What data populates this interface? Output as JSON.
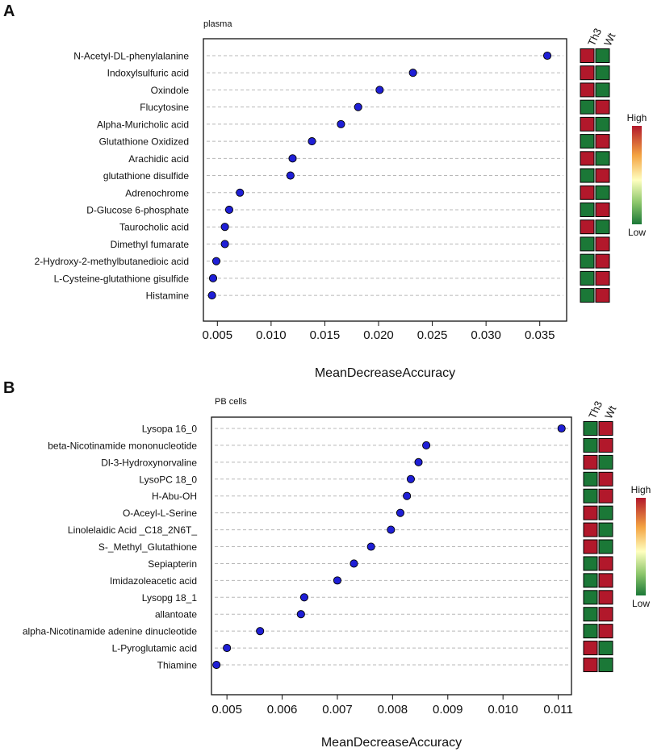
{
  "colors": {
    "point": "#1f1fd6",
    "high": "#b2182b",
    "mid": "#ffffbf",
    "low": "#1b7837",
    "gridline": "#b8b8b8"
  },
  "heatmap_columns": [
    "Th3",
    "Wt"
  ],
  "legend": {
    "high": "High",
    "low": "Low"
  },
  "chart_data": [
    {
      "panel_label": "A",
      "type": "scatter",
      "title": "plasma",
      "xlabel": "MeanDecreaseAccuracy",
      "ylabel": "",
      "xlim": [
        0.0037,
        0.0375
      ],
      "xticks": [
        0.005,
        0.01,
        0.015,
        0.02,
        0.025,
        0.03,
        0.035
      ],
      "tick_labels": [
        "0.005",
        "0.010",
        "0.015",
        "0.020",
        "0.025",
        "0.030",
        "0.035"
      ],
      "categories": [
        "N-Acetyl-DL-phenylalanine",
        "Indoxylsulfuric acid",
        "Oxindole",
        "Flucytosine",
        "Alpha-Muricholic acid",
        "Glutathione Oxidized",
        "Arachidic acid",
        "glutathione disulfide",
        "Adrenochrome",
        "D-Glucose 6-phosphate",
        "Taurocholic acid",
        "Dimethyl fumarate",
        "2-Hydroxy-2-methylbutanedioic acid",
        "L-Cysteine-glutathione gisulfide",
        "Histamine"
      ],
      "values": [
        0.0357,
        0.0232,
        0.0201,
        0.0181,
        0.0165,
        0.0138,
        0.012,
        0.0118,
        0.0071,
        0.0061,
        0.0057,
        0.0057,
        0.0049,
        0.0046,
        0.0045
      ],
      "heatmap": [
        [
          "high",
          "low"
        ],
        [
          "high",
          "low"
        ],
        [
          "high",
          "low"
        ],
        [
          "low",
          "high"
        ],
        [
          "high",
          "low"
        ],
        [
          "low",
          "high"
        ],
        [
          "high",
          "low"
        ],
        [
          "low",
          "high"
        ],
        [
          "high",
          "low"
        ],
        [
          "low",
          "high"
        ],
        [
          "high",
          "low"
        ],
        [
          "low",
          "high"
        ],
        [
          "low",
          "high"
        ],
        [
          "low",
          "high"
        ],
        [
          "low",
          "high"
        ]
      ]
    },
    {
      "panel_label": "B",
      "type": "scatter",
      "title": "PB cells",
      "xlabel": "MeanDecreaseAccuracy",
      "ylabel": "",
      "xlim": [
        0.00472,
        0.01124
      ],
      "xticks": [
        0.005,
        0.006,
        0.007,
        0.008,
        0.009,
        0.01,
        0.011
      ],
      "tick_labels": [
        "0.005",
        "0.006",
        "0.007",
        "0.008",
        "0.009",
        "0.010",
        "0.011"
      ],
      "categories": [
        "Lysopa 16_0",
        "beta-Nicotinamide mononucleotide",
        "Dl-3-Hydroxynorvaline",
        "LysoPC 18_0",
        "H-Abu-OH",
        "O-Aceyl-L-Serine",
        "Linolelaidic Acid _C18_2N6T_",
        "S-_Methyl_Glutathione",
        "Sepiapterin",
        "Imidazoleacetic acid",
        "Lysopg 18_1",
        "allantoate",
        "alpha-Nicotinamide adenine dinucleotide",
        "L-Pyroglutamic acid",
        "Thiamine"
      ],
      "values": [
        0.01106,
        0.00861,
        0.00847,
        0.00833,
        0.00826,
        0.00814,
        0.00797,
        0.00761,
        0.0073,
        0.007,
        0.0064,
        0.00634,
        0.0056,
        0.005,
        0.00481
      ],
      "heatmap": [
        [
          "low",
          "high"
        ],
        [
          "low",
          "high"
        ],
        [
          "high",
          "low"
        ],
        [
          "low",
          "high"
        ],
        [
          "low",
          "high"
        ],
        [
          "high",
          "low"
        ],
        [
          "high",
          "low"
        ],
        [
          "high",
          "low"
        ],
        [
          "low",
          "high"
        ],
        [
          "low",
          "high"
        ],
        [
          "low",
          "high"
        ],
        [
          "low",
          "high"
        ],
        [
          "low",
          "high"
        ],
        [
          "high",
          "low"
        ],
        [
          "high",
          "low"
        ]
      ]
    }
  ]
}
